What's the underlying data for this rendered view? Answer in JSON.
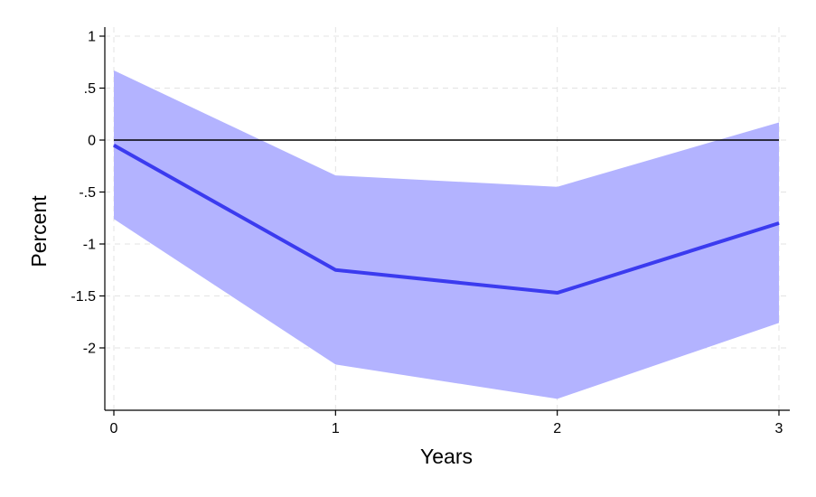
{
  "chart_data": {
    "type": "line",
    "xlabel": "Years",
    "ylabel": "Percent",
    "x": [
      0,
      1,
      2,
      3
    ],
    "xticks": [
      0,
      1,
      2,
      3
    ],
    "xtick_labels": [
      "0",
      "1",
      "2",
      "3"
    ],
    "yticks": [
      1,
      0.5,
      0,
      -0.5,
      -1,
      -1.5,
      -2
    ],
    "ytick_labels": [
      "1",
      ".5",
      "0",
      "-.5",
      "-1",
      "-1.5",
      "-2"
    ],
    "xlim": [
      -0.05,
      3.05
    ],
    "ylim": [
      -2.6,
      1.1
    ],
    "grid": true,
    "legend": "none",
    "reference_line": 0,
    "series": [
      {
        "values": [
          -0.05,
          -1.25,
          -1.47,
          -0.8
        ],
        "lower": [
          -0.76,
          -2.16,
          -2.49,
          -1.76
        ],
        "upper": [
          0.67,
          -0.34,
          -0.45,
          0.17
        ]
      }
    ],
    "colors": {
      "line": "#3b3bef",
      "band": "#b3b3ff",
      "grid": "#e3e3e3",
      "axis": "#000000",
      "reference": "#000000"
    }
  }
}
